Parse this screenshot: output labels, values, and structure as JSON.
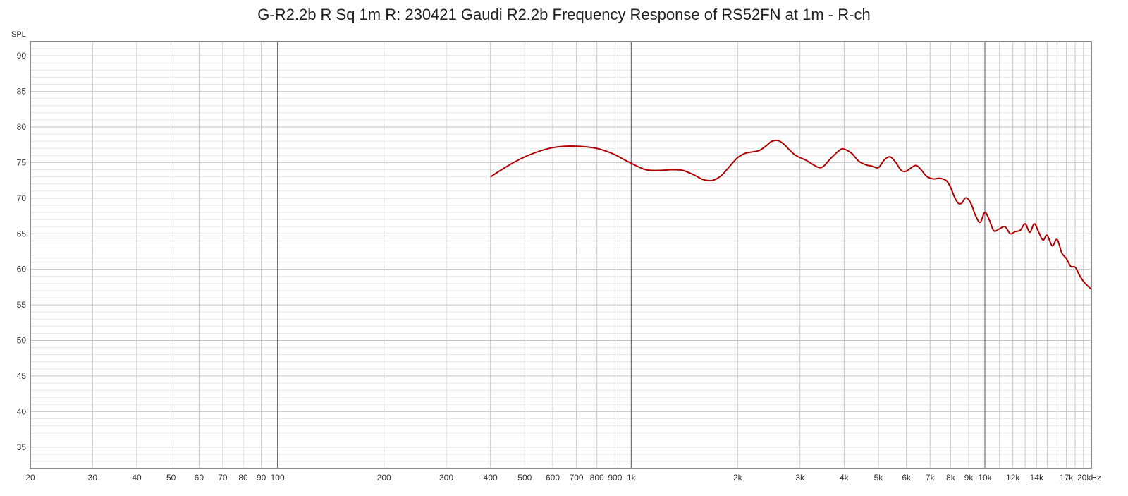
{
  "chart_data": {
    "type": "line",
    "title": "G-R2.2b R Sq 1m R: 230421 Gaudi R2.2b Frequency Response of RS52FN at 1m - R-ch",
    "ylabel": "SPL",
    "xlabel": "",
    "xscale": "log",
    "xlim": [
      20,
      20000
    ],
    "ylim": [
      32,
      92
    ],
    "grid": true,
    "x_ticks": [
      {
        "v": 20,
        "t": "20"
      },
      {
        "v": 30,
        "t": "30"
      },
      {
        "v": 40,
        "t": "40"
      },
      {
        "v": 50,
        "t": "50"
      },
      {
        "v": 60,
        "t": "60"
      },
      {
        "v": 70,
        "t": "70"
      },
      {
        "v": 80,
        "t": "80"
      },
      {
        "v": 90,
        "t": "90"
      },
      {
        "v": 100,
        "t": "100"
      },
      {
        "v": 200,
        "t": "200"
      },
      {
        "v": 300,
        "t": "300"
      },
      {
        "v": 400,
        "t": "400"
      },
      {
        "v": 500,
        "t": "500"
      },
      {
        "v": 600,
        "t": "600"
      },
      {
        "v": 700,
        "t": "700"
      },
      {
        "v": 800,
        "t": "800"
      },
      {
        "v": 900,
        "t": "900"
      },
      {
        "v": 1000,
        "t": "1k"
      },
      {
        "v": 2000,
        "t": "2k"
      },
      {
        "v": 3000,
        "t": "3k"
      },
      {
        "v": 4000,
        "t": "4k"
      },
      {
        "v": 5000,
        "t": "5k"
      },
      {
        "v": 6000,
        "t": "6k"
      },
      {
        "v": 7000,
        "t": "7k"
      },
      {
        "v": 8000,
        "t": "8k"
      },
      {
        "v": 9000,
        "t": "9k"
      },
      {
        "v": 10000,
        "t": "10k"
      },
      {
        "v": 12000,
        "t": "12k"
      },
      {
        "v": 14000,
        "t": "14k"
      },
      {
        "v": 17000,
        "t": "17k"
      },
      {
        "v": 20000,
        "t": "20kHz"
      }
    ],
    "y_ticks": [
      35,
      40,
      45,
      50,
      55,
      60,
      65,
      70,
      75,
      80,
      85,
      90
    ],
    "series": [
      {
        "color": "#b00000",
        "x": [
          400,
          450,
          500,
          550,
          600,
          650,
          700,
          750,
          800,
          850,
          900,
          1000,
          1100,
          1200,
          1300,
          1400,
          1500,
          1600,
          1700,
          1800,
          1900,
          2000,
          2100,
          2200,
          2300,
          2400,
          2500,
          2600,
          2700,
          2800,
          2900,
          3000,
          3100,
          3200,
          3300,
          3400,
          3500,
          3700,
          3900,
          4000,
          4200,
          4400,
          4600,
          4800,
          5000,
          5200,
          5400,
          5600,
          5800,
          6000,
          6200,
          6400,
          6600,
          6800,
          7000,
          7200,
          7400,
          7600,
          7800,
          8000,
          8200,
          8400,
          8600,
          8800,
          9000,
          9200,
          9400,
          9700,
          10000,
          10300,
          10600,
          11000,
          11400,
          11800,
          12200,
          12600,
          13000,
          13400,
          13800,
          14200,
          14600,
          15000,
          15500,
          16000,
          16500,
          17000,
          17500,
          18000,
          18500,
          19000,
          19500,
          20000
        ],
        "y": [
          73.0,
          74.6,
          75.8,
          76.6,
          77.1,
          77.3,
          77.3,
          77.2,
          77.0,
          76.6,
          76.1,
          74.9,
          74.0,
          73.9,
          74.0,
          73.9,
          73.3,
          72.6,
          72.5,
          73.2,
          74.5,
          75.7,
          76.3,
          76.5,
          76.7,
          77.3,
          78.0,
          78.1,
          77.6,
          76.8,
          76.1,
          75.7,
          75.4,
          75.0,
          74.6,
          74.3,
          74.5,
          75.8,
          76.8,
          76.9,
          76.3,
          75.2,
          74.7,
          74.5,
          74.3,
          75.4,
          75.8,
          75.0,
          73.9,
          73.8,
          74.3,
          74.6,
          74.0,
          73.2,
          72.8,
          72.7,
          72.8,
          72.7,
          72.4,
          71.5,
          70.2,
          69.3,
          69.3,
          70.0,
          69.8,
          68.9,
          67.6,
          66.6,
          68.0,
          66.9,
          65.4,
          65.7,
          66.0,
          65.0,
          65.3,
          65.5,
          66.4,
          65.2,
          66.4,
          65.2,
          64.1,
          64.8,
          63.3,
          64.2,
          62.3,
          61.5,
          60.4,
          60.3,
          59.2,
          58.3,
          57.7,
          57.2
        ]
      }
    ]
  }
}
